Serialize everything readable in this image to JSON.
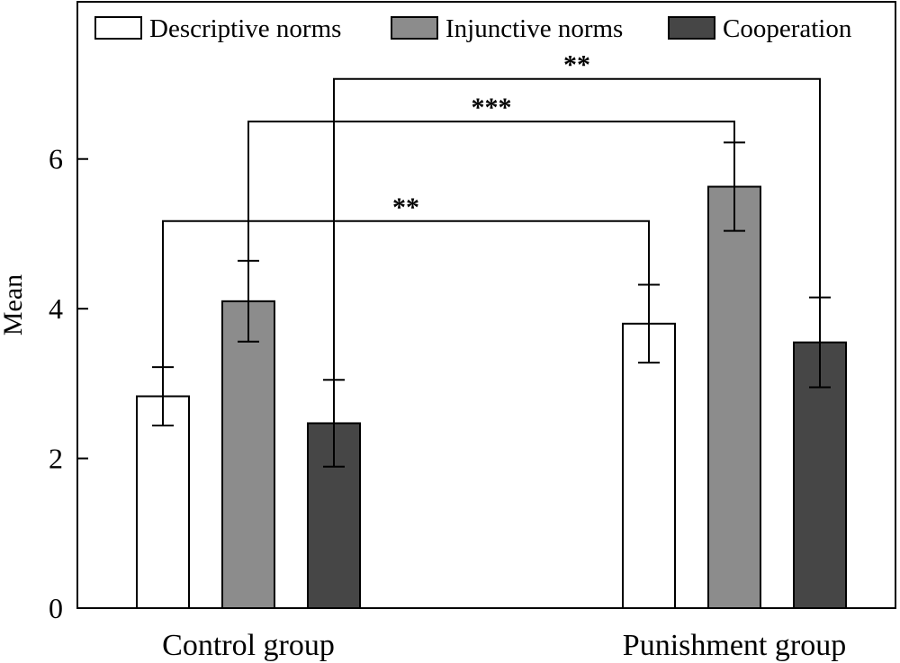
{
  "chart_data": {
    "type": "bar",
    "title": "",
    "xlabel": "",
    "ylabel": "Mean",
    "ylim": [
      0,
      8.1
    ],
    "yticks": [
      0,
      2,
      4,
      6
    ],
    "grid": false,
    "legend_position": "top",
    "categories": [
      "Control group",
      "Punishment group"
    ],
    "series": [
      {
        "name": "Descriptive norms",
        "color": "#ffffff",
        "values": [
          2.83,
          3.8
        ],
        "errors": [
          0.39,
          0.52
        ]
      },
      {
        "name": "Injunctive norms",
        "color": "#8c8c8c",
        "values": [
          4.1,
          5.63
        ],
        "errors": [
          0.54,
          0.59
        ]
      },
      {
        "name": "Cooperation",
        "color": "#464646",
        "values": [
          2.47,
          3.55
        ],
        "errors": [
          0.58,
          0.6
        ]
      }
    ],
    "significance": [
      {
        "series": 0,
        "label": "**",
        "level": 5.17
      },
      {
        "series": 1,
        "label": "***",
        "level": 6.5
      },
      {
        "series": 2,
        "label": "**",
        "level": 7.07
      }
    ]
  }
}
